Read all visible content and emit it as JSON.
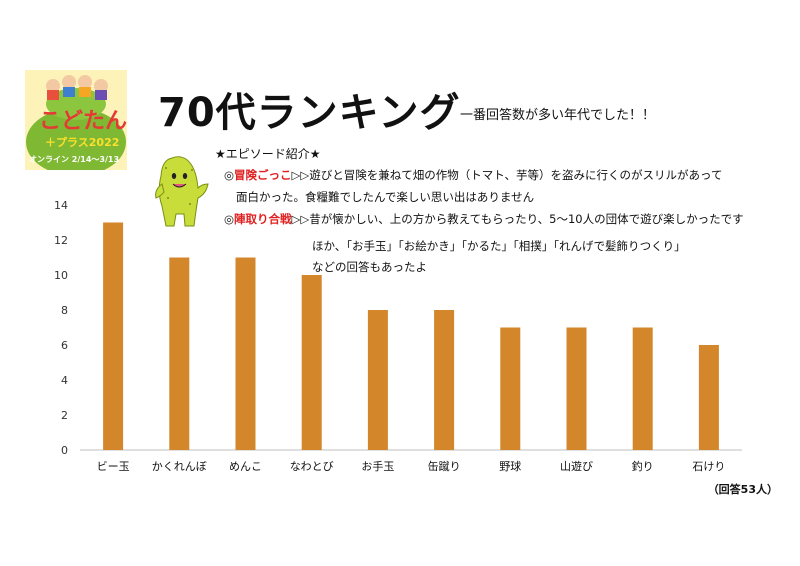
{
  "title": "70代ランキング",
  "subtitle": "一番回答数が多い年代でした！！",
  "logo": {
    "text_line1": "こどたん",
    "text_line2": "＋プラス2022",
    "text_line3": "オンライン 2/14〜3/13"
  },
  "episodes": {
    "heading": "★エピソード紹介★",
    "items": [
      {
        "marker": "◎",
        "key": "冒険ごっこ",
        "arrow": "▷▷",
        "text": "遊びと冒険を兼ねて畑の作物（トマト、芋等）を盗みに行くのがスリルがあって",
        "text_cont": "面白かった。食糧難でしたんで楽しい思い出はありません"
      },
      {
        "marker": "◎",
        "key": "陣取り合戦",
        "arrow": "▷▷",
        "text": "昔が懐かしい、上の方から教えてもらったり、5〜10人の団体で遊び楽しかったです"
      }
    ],
    "others_line1": "ほか、「お手玉」「お絵かき」「かるた」「相撲」「れんげで髪飾りつくり」",
    "others_line2": "などの回答もあったよ"
  },
  "footnote": "（回答53人）",
  "colors": {
    "bar": "#d4862a",
    "axis": "#bfbfbf",
    "logo_bg": "#fdf3b8",
    "mascot": "#c8dd3a",
    "episode_key": "#e02020"
  },
  "chart_data": {
    "type": "bar",
    "categories": [
      "ビー玉",
      "かくれんぼ",
      "めんこ",
      "なわとび",
      "お手玉",
      "缶蹴り",
      "野球",
      "山遊び",
      "釣り",
      "石けり"
    ],
    "values": [
      13,
      11,
      11,
      10,
      8,
      8,
      7,
      7,
      7,
      6
    ],
    "ylim": [
      0,
      14
    ],
    "yticks": [
      "0",
      "2",
      "4",
      "6",
      "8",
      "10",
      "12",
      "14"
    ],
    "grid": false
  }
}
